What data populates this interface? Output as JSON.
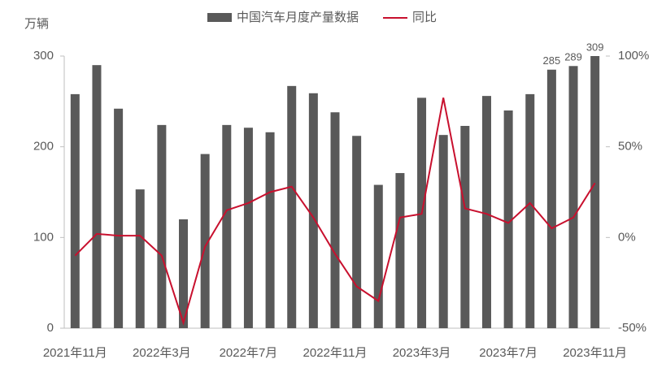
{
  "chart_data": {
    "type": "bar_line",
    "y_axis_label": "万辆",
    "categories": [
      "2021年11月",
      null,
      null,
      null,
      "2022年3月",
      null,
      null,
      null,
      "2022年7月",
      null,
      null,
      null,
      "2022年11月",
      null,
      null,
      null,
      "2023年3月",
      null,
      null,
      null,
      "2023年7月",
      null,
      null,
      null,
      "2023年11月"
    ],
    "series": [
      {
        "name": "中国汽车月度产量数据",
        "type": "bar",
        "color": "#595959",
        "values": [
          258,
          290,
          242,
          153,
          224,
          120,
          192,
          224,
          221,
          216,
          267,
          259,
          238,
          212,
          158,
          171,
          254,
          213,
          223,
          256,
          240,
          258,
          285,
          289,
          309
        ],
        "value_labels": [
          null,
          null,
          null,
          null,
          null,
          null,
          null,
          null,
          null,
          null,
          null,
          null,
          null,
          null,
          null,
          null,
          null,
          null,
          null,
          null,
          null,
          null,
          "285",
          "289",
          "309"
        ]
      },
      {
        "name": "同比",
        "type": "line",
        "axis": "y2",
        "color": "#c8102e",
        "values": [
          -10,
          2,
          1,
          1,
          -10,
          -47,
          -5,
          15,
          19,
          25,
          28,
          11,
          -9,
          -27,
          -35,
          11,
          13,
          77,
          16,
          13,
          8,
          19,
          5,
          11,
          30
        ]
      }
    ],
    "ylim": [
      0,
      300
    ],
    "yticks": [
      0,
      100,
      200,
      300
    ],
    "y2lim": [
      -50,
      100
    ],
    "y2ticks": [
      {
        "value": -50,
        "label": "-50%"
      },
      {
        "value": 0,
        "label": "0%"
      },
      {
        "value": 50,
        "label": "50%"
      },
      {
        "value": 100,
        "label": "100%"
      }
    ],
    "legend": "top"
  }
}
